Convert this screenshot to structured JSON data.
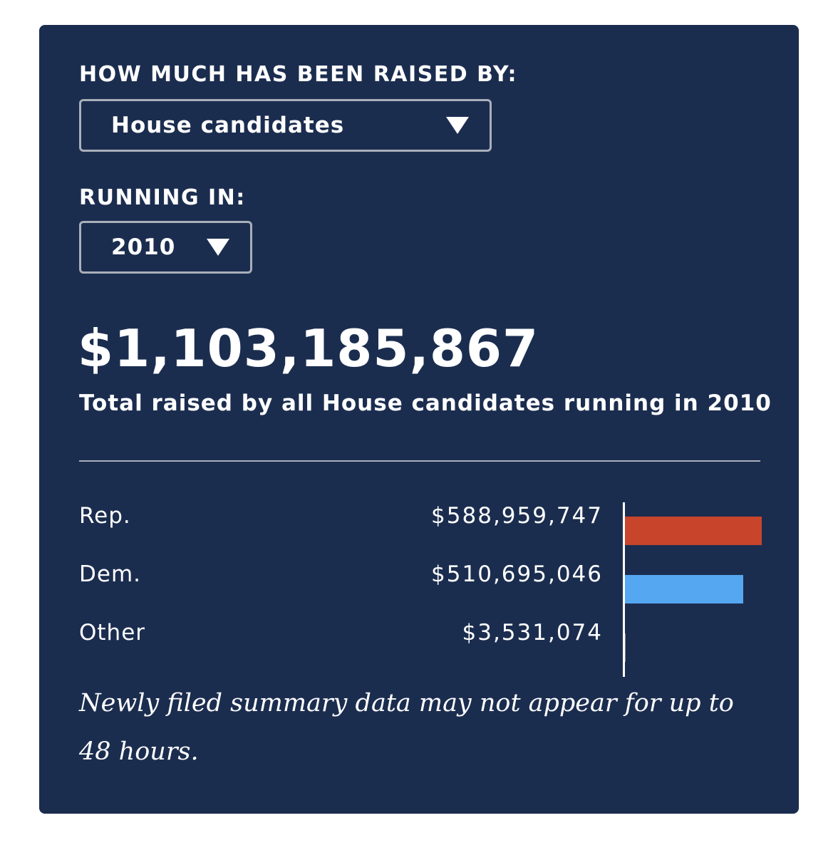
{
  "raised_by": {
    "label": "HOW MUCH HAS BEEN RAISED BY:",
    "selected": "House candidates",
    "arrow_icon": "triangle-down-icon"
  },
  "running_in": {
    "label": "RUNNING IN:",
    "selected": "2010",
    "arrow_icon": "triangle-down-icon"
  },
  "total": {
    "amount": "$1,103,185,867",
    "caption": "Total raised by all House candidates running in 2010"
  },
  "colors": {
    "background": "#1b2d4f",
    "rep": "#c8452b",
    "dem": "#55a7f2",
    "other": "#888888"
  },
  "chart_data": {
    "type": "bar",
    "orientation": "horizontal",
    "categories": [
      "Rep.",
      "Dem.",
      "Other"
    ],
    "values": [
      588959747,
      510695046,
      3531074
    ],
    "value_labels": [
      "$588,959,747",
      "$510,695,046",
      "$3,531,074"
    ]
  },
  "note": "Newly filed summary data may not appear for up to 48 hours."
}
